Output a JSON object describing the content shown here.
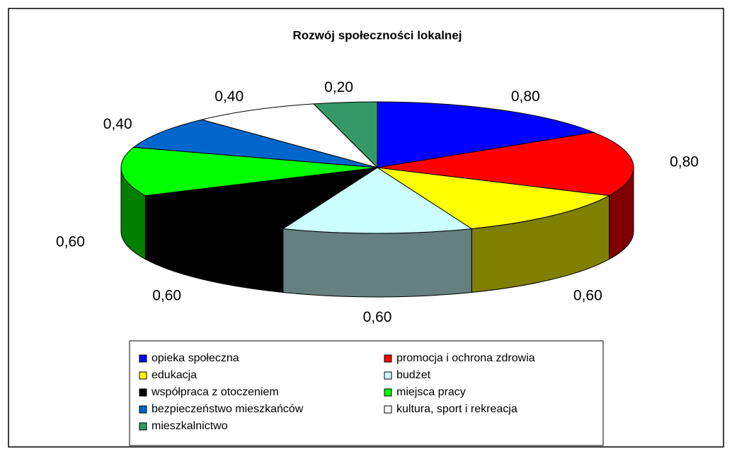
{
  "chart_data": {
    "type": "pie3d",
    "title": "Rozwój społeczności lokalnej",
    "categories": [
      "opieka społeczna",
      "promocja i ochrona zdrowia",
      "edukacja",
      "budżet",
      "współpraca z otoczeniem",
      "miejsca pracy",
      "bezpieczeństwo mieszkańców",
      "kultura, sport i rekreacja",
      "mieszkalnictwo"
    ],
    "values": [
      0.8,
      0.8,
      0.6,
      0.6,
      0.6,
      0.6,
      0.4,
      0.4,
      0.2
    ],
    "value_labels": [
      "0,80",
      "0,80",
      "0,60",
      "0,60",
      "0,60",
      "0,60",
      "0,40",
      "0,40",
      "0,20"
    ],
    "colors": [
      "#0000ff",
      "#ff0000",
      "#ffff00",
      "#ccffff",
      "#000000",
      "#00ff00",
      "#0066cc",
      "#ffffff",
      "#339966"
    ],
    "legend": "bottom"
  }
}
